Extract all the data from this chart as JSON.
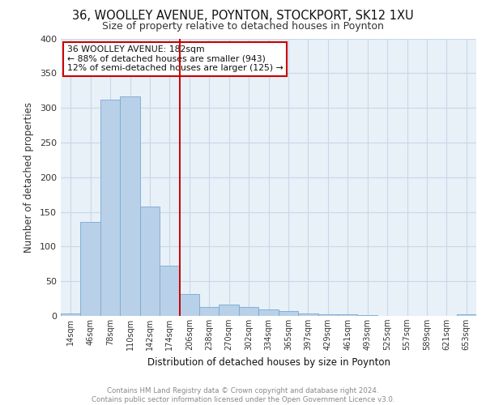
{
  "title1": "36, WOOLLEY AVENUE, POYNTON, STOCKPORT, SK12 1XU",
  "title2": "Size of property relative to detached houses in Poynton",
  "xlabel": "Distribution of detached houses by size in Poynton",
  "ylabel": "Number of detached properties",
  "bar_labels": [
    "14sqm",
    "46sqm",
    "78sqm",
    "110sqm",
    "142sqm",
    "174sqm",
    "206sqm",
    "238sqm",
    "270sqm",
    "302sqm",
    "334sqm",
    "365sqm",
    "397sqm",
    "429sqm",
    "461sqm",
    "493sqm",
    "525sqm",
    "557sqm",
    "589sqm",
    "621sqm",
    "653sqm"
  ],
  "bar_values": [
    4,
    136,
    312,
    317,
    158,
    72,
    32,
    13,
    16,
    13,
    9,
    7,
    3,
    2,
    2,
    1,
    0,
    0,
    0,
    0,
    2
  ],
  "bar_color": "#b8d0e8",
  "bar_edge_color": "#7aaad0",
  "vline_x": 5.5,
  "vline_color": "#cc0000",
  "annotation_text": "36 WOOLLEY AVENUE: 182sqm\n← 88% of detached houses are smaller (943)\n12% of semi-detached houses are larger (125) →",
  "annotation_box_color": "#ffffff",
  "annotation_box_edge": "#cc0000",
  "ylim": [
    0,
    400
  ],
  "yticks": [
    0,
    50,
    100,
    150,
    200,
    250,
    300,
    350,
    400
  ],
  "footer_text": "Contains HM Land Registry data © Crown copyright and database right 2024.\nContains public sector information licensed under the Open Government Licence v3.0.",
  "grid_color": "#c8d8e8",
  "bg_color": "#e8f0f8"
}
